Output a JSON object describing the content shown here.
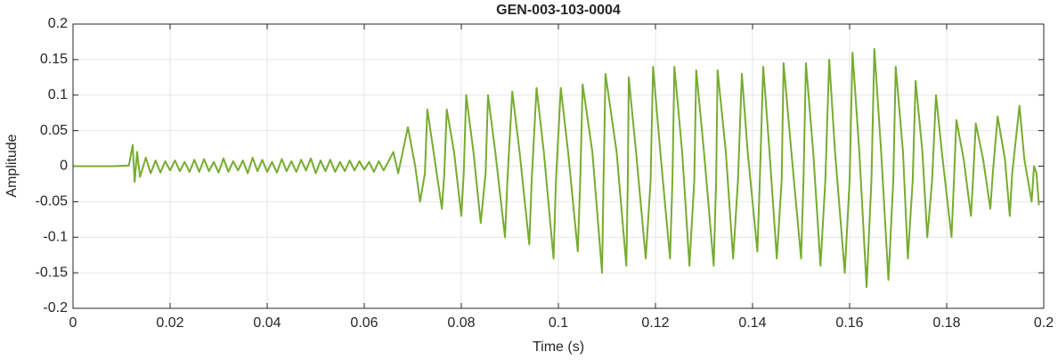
{
  "chart_data": {
    "type": "line",
    "title": "GEN-003-103-0004",
    "x_label": "Time (s)",
    "y_label": "Amplitude",
    "color": "#77ac30",
    "grid": true,
    "xlim": [
      0,
      0.2
    ],
    "xticks": [
      0,
      0.02,
      0.04,
      0.06,
      0.08,
      0.1,
      0.12,
      0.14,
      0.16,
      0.18,
      0.2
    ],
    "ylim": [
      -0.2,
      0.2
    ],
    "yticks": [
      -0.2,
      -0.15,
      -0.1,
      -0.05,
      0,
      0.05,
      0.1,
      0.15,
      0.2
    ],
    "x": [
      0,
      0.004,
      0.008,
      0.0115,
      0.0123,
      0.0127,
      0.0132,
      0.0138,
      0.015,
      0.016,
      0.017,
      0.018,
      0.019,
      0.02,
      0.021,
      0.022,
      0.023,
      0.024,
      0.025,
      0.026,
      0.027,
      0.028,
      0.029,
      0.03,
      0.031,
      0.032,
      0.033,
      0.034,
      0.035,
      0.036,
      0.037,
      0.038,
      0.039,
      0.04,
      0.041,
      0.042,
      0.043,
      0.044,
      0.045,
      0.046,
      0.047,
      0.048,
      0.049,
      0.05,
      0.051,
      0.052,
      0.053,
      0.054,
      0.055,
      0.056,
      0.057,
      0.058,
      0.059,
      0.06,
      0.061,
      0.062,
      0.063,
      0.064,
      0.066,
      0.067,
      0.069,
      0.0705,
      0.0715,
      0.0725,
      0.073,
      0.0745,
      0.076,
      0.0765,
      0.077,
      0.0785,
      0.08,
      0.0805,
      0.081,
      0.0825,
      0.084,
      0.085,
      0.0855,
      0.087,
      0.089,
      0.0895,
      0.0905,
      0.092,
      0.094,
      0.0945,
      0.0955,
      0.097,
      0.099,
      0.0995,
      0.1005,
      0.102,
      0.104,
      0.1045,
      0.105,
      0.107,
      0.109,
      0.1093,
      0.1097,
      0.112,
      0.114,
      0.1143,
      0.1145,
      0.116,
      0.118,
      0.119,
      0.1195,
      0.121,
      0.123,
      0.1235,
      0.1239,
      0.1255,
      0.127,
      0.128,
      0.1284,
      0.13,
      0.132,
      0.1325,
      0.1328,
      0.1345,
      0.136,
      0.137,
      0.1378,
      0.139,
      0.141,
      0.1415,
      0.1422,
      0.1435,
      0.145,
      0.146,
      0.1464,
      0.148,
      0.15,
      0.1505,
      0.151,
      0.1525,
      0.154,
      0.155,
      0.1558,
      0.157,
      0.159,
      0.16,
      0.1606,
      0.162,
      0.1635,
      0.1645,
      0.1651,
      0.1665,
      0.168,
      0.169,
      0.1695,
      0.171,
      0.172,
      0.173,
      0.1736,
      0.175,
      0.176,
      0.177,
      0.1778,
      0.179,
      0.181,
      0.1815,
      0.182,
      0.1835,
      0.185,
      0.1855,
      0.186,
      0.1875,
      0.189,
      0.1895,
      0.1905,
      0.192,
      0.193,
      0.1935,
      0.195,
      0.196,
      0.1975,
      0.198,
      0.1985,
      0.199
    ],
    "values": [
      0,
      0,
      0,
      0.001,
      0.03,
      -0.022,
      0.02,
      -0.015,
      0.012,
      -0.01,
      0.008,
      -0.009,
      0.007,
      -0.006,
      0.008,
      -0.007,
      0.006,
      -0.008,
      0.009,
      -0.008,
      0.01,
      -0.007,
      0.006,
      -0.009,
      0.011,
      -0.008,
      0.007,
      -0.006,
      0.008,
      -0.01,
      0.012,
      -0.007,
      0.009,
      -0.008,
      0.006,
      -0.009,
      0.01,
      -0.007,
      0.007,
      -0.008,
      0.009,
      -0.006,
      0.011,
      -0.01,
      0.008,
      -0.007,
      0.009,
      -0.008,
      0.006,
      -0.007,
      0.008,
      -0.006,
      0.007,
      -0.005,
      0.006,
      -0.008,
      0.007,
      -0.006,
      0.02,
      -0.01,
      0.055,
      0.0,
      -0.05,
      -0.01,
      0.08,
      0.01,
      -0.06,
      -0.01,
      0.08,
      0.02,
      -0.07,
      -0.01,
      0.1,
      0.02,
      -0.08,
      -0.01,
      0.1,
      0.02,
      -0.1,
      -0.02,
      0.105,
      0.02,
      -0.11,
      -0.02,
      0.11,
      0.02,
      -0.13,
      -0.02,
      0.11,
      0.02,
      -0.12,
      -0.02,
      0.115,
      0.02,
      -0.15,
      -0.02,
      0.13,
      0.02,
      -0.14,
      -0.02,
      0.125,
      0.02,
      -0.13,
      -0.02,
      0.14,
      0.02,
      -0.13,
      -0.02,
      0.14,
      0.02,
      -0.14,
      -0.02,
      0.135,
      0.02,
      -0.14,
      -0.02,
      0.135,
      0.02,
      -0.13,
      -0.02,
      0.13,
      0.02,
      -0.12,
      -0.02,
      0.14,
      0.02,
      -0.13,
      -0.02,
      0.145,
      0.02,
      -0.13,
      -0.02,
      0.145,
      0.02,
      -0.14,
      -0.02,
      0.15,
      0.02,
      -0.15,
      -0.02,
      0.16,
      0.02,
      -0.17,
      -0.02,
      0.165,
      0.02,
      -0.16,
      -0.02,
      0.14,
      0.02,
      -0.13,
      -0.02,
      0.12,
      0.02,
      -0.1,
      -0.02,
      0.1,
      0.02,
      -0.1,
      -0.02,
      0.065,
      0.01,
      -0.07,
      -0.01,
      0.06,
      0.01,
      -0.06,
      -0.01,
      0.07,
      0.01,
      -0.07,
      -0.01,
      0.085,
      0.01,
      -0.05,
      0.0,
      -0.01,
      -0.055
    ]
  }
}
